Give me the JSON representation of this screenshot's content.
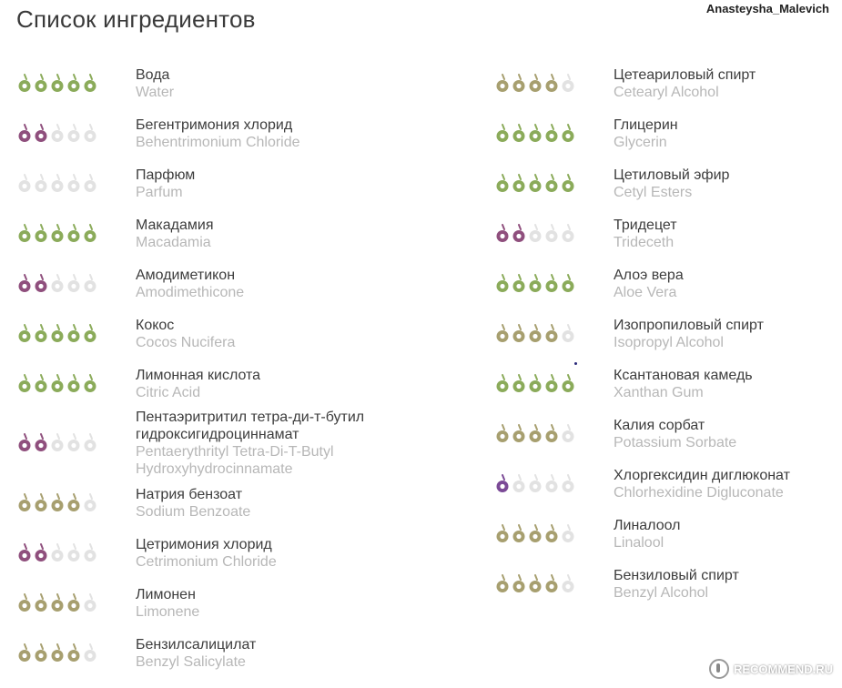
{
  "page": {
    "title": "Список ингредиентов",
    "author": "Anasteysha_Malevich",
    "watermark": "RECOMMEND.RU"
  },
  "colors": {
    "green": "#8bab5a",
    "olive": "#a79f6f",
    "purple": "#8f4f7d",
    "violet": "#7b4a96",
    "empty": "#e2e2e2"
  },
  "icons": {
    "rating_drop": "drop-icon"
  },
  "ingredients_left": [
    {
      "ru": "Вода",
      "en": "Water",
      "rating": 5,
      "color": "green"
    },
    {
      "ru": "Бегентримония хлорид",
      "en": "Behentrimonium Chloride",
      "rating": 2,
      "color": "purple"
    },
    {
      "ru": "Парфюм",
      "en": "Parfum",
      "rating": 0,
      "color": "empty"
    },
    {
      "ru": "Макадамия",
      "en": "Macadamia",
      "rating": 5,
      "color": "green"
    },
    {
      "ru": "Амодиметикон",
      "en": "Amodimethicone",
      "rating": 2,
      "color": "purple"
    },
    {
      "ru": "Кокос",
      "en": "Cocos Nucifera",
      "rating": 5,
      "color": "green"
    },
    {
      "ru": "Лимонная кислота",
      "en": "Citric Acid",
      "rating": 5,
      "color": "green"
    },
    {
      "ru": "Пентаэритритил тетра-ди-т-бутил гидроксигидроциннамат",
      "en": "Pentaerythrityl Tetra-Di-T-Butyl Hydroxyhydrocinnamate",
      "rating": 2,
      "color": "purple"
    },
    {
      "ru": "Натрия бензоат",
      "en": "Sodium Benzoate",
      "rating": 4,
      "color": "olive"
    },
    {
      "ru": "Цетримония хлорид",
      "en": "Cetrimonium Chloride",
      "rating": 2,
      "color": "purple"
    },
    {
      "ru": "Лимонен",
      "en": "Limonene",
      "rating": 4,
      "color": "olive"
    },
    {
      "ru": "Бензилсалицилат",
      "en": "Benzyl Salicylate",
      "rating": 4,
      "color": "olive"
    }
  ],
  "ingredients_right": [
    {
      "ru": "Цетеариловый спирт",
      "en": "Cetearyl Alcohol",
      "rating": 4,
      "color": "olive"
    },
    {
      "ru": "Глицерин",
      "en": "Glycerin",
      "rating": 5,
      "color": "green"
    },
    {
      "ru": "Цетиловый эфир",
      "en": "Cetyl Esters",
      "rating": 5,
      "color": "green"
    },
    {
      "ru": "Тридецет",
      "en": "Trideceth",
      "rating": 2,
      "color": "purple"
    },
    {
      "ru": "Алоэ вера",
      "en": "Aloe Vera",
      "rating": 5,
      "color": "green"
    },
    {
      "ru": "Изопропиловый спирт",
      "en": "Isopropyl Alcohol",
      "rating": 4,
      "color": "olive"
    },
    {
      "ru": "Ксантановая камедь",
      "en": "Xanthan Gum",
      "rating": 5,
      "color": "green"
    },
    {
      "ru": "Калия сорбат",
      "en": "Potassium Sorbate",
      "rating": 4,
      "color": "olive"
    },
    {
      "ru": "Хлоргексидин диглюконат",
      "en": "Chlorhexidine Digluconate",
      "rating": 1,
      "color": "violet"
    },
    {
      "ru": "Линалоол",
      "en": "Linalool",
      "rating": 4,
      "color": "olive"
    },
    {
      "ru": "Бензиловый спирт",
      "en": "Benzyl Alcohol",
      "rating": 4,
      "color": "olive"
    }
  ]
}
